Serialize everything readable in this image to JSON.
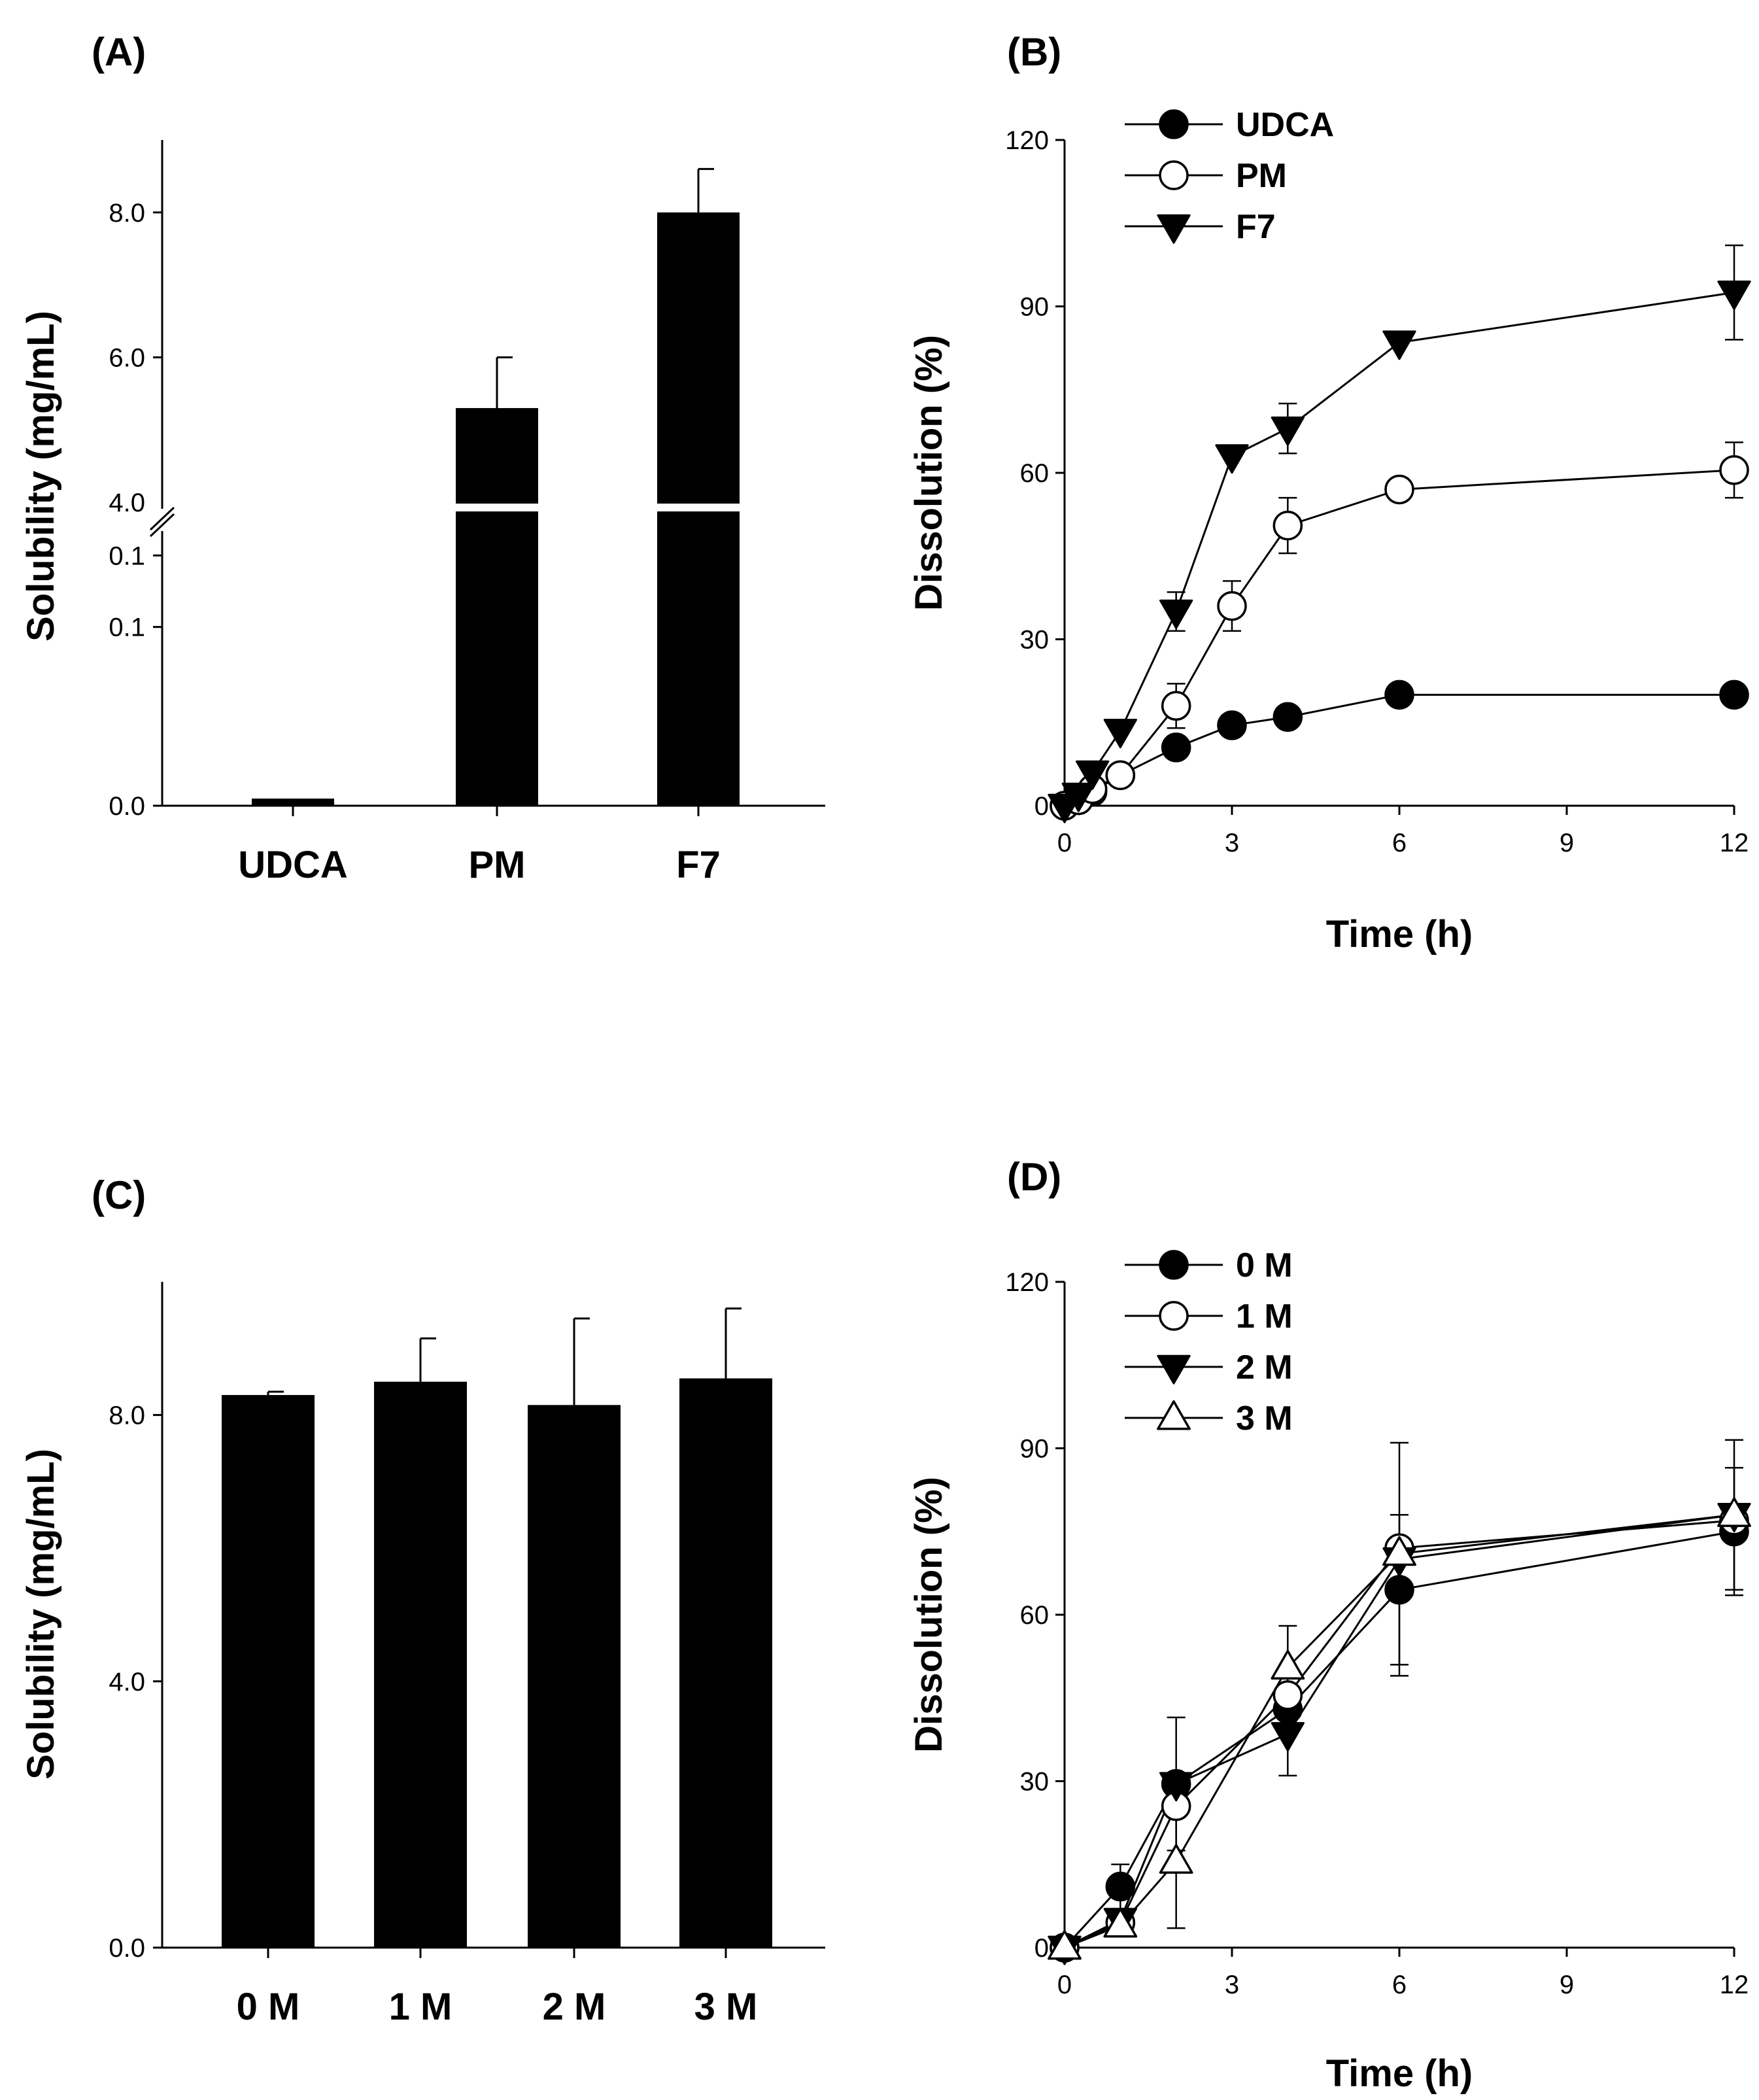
{
  "colors": {
    "ink": "#000000",
    "paper": "#ffffff"
  },
  "chart_data": [
    {
      "id": "A",
      "panel_label": "(A)",
      "type": "bar",
      "broken_axis": true,
      "ylabel": "Solubility (mg/mL)",
      "categories": [
        "UDCA",
        "PM",
        "F7"
      ],
      "values": [
        0.004,
        5.3,
        8.0
      ],
      "errors": [
        0.001,
        0.7,
        0.6
      ],
      "lower_segment": {
        "ylim": [
          0.0,
          0.15
        ],
        "ticks": [
          "0.0",
          "0.1",
          "0.1"
        ]
      },
      "upper_segment": {
        "ylim": [
          4.0,
          9.0
        ],
        "ticks": [
          "4.0",
          "6.0",
          "8.0"
        ]
      }
    },
    {
      "id": "B",
      "panel_label": "(B)",
      "type": "line",
      "xlabel": "Time (h)",
      "ylabel": "Dissolution (%)",
      "xlim": [
        0,
        12
      ],
      "ylim": [
        0,
        120
      ],
      "xticks": [
        "0",
        "3",
        "6",
        "9",
        "12"
      ],
      "yticks": [
        "0",
        "30",
        "60",
        "90",
        "120"
      ],
      "legend_position": "top-left",
      "series": [
        {
          "name": "UDCA",
          "marker": "filled-circle",
          "x": [
            0,
            0.25,
            0.5,
            1,
            2,
            3,
            4,
            6,
            12
          ],
          "y": [
            0,
            1,
            2.5,
            5.5,
            10.5,
            14.5,
            16,
            20,
            20
          ],
          "err": [
            0,
            0,
            0,
            0,
            0,
            0,
            0,
            0,
            0
          ]
        },
        {
          "name": "PM",
          "marker": "open-circle",
          "x": [
            0,
            0.25,
            0.5,
            1,
            2,
            3,
            4,
            6,
            12
          ],
          "y": [
            0,
            1,
            3,
            5.5,
            18,
            36,
            50.5,
            57,
            60.5
          ],
          "err": [
            0,
            0,
            0,
            0,
            4,
            4.5,
            5,
            0,
            5
          ]
        },
        {
          "name": "F7",
          "marker": "filled-triangle-down",
          "x": [
            0,
            0.25,
            0.5,
            1,
            2,
            3,
            4,
            6,
            12
          ],
          "y": [
            0,
            2,
            6,
            13.5,
            35,
            63,
            68,
            83.5,
            92.5
          ],
          "err": [
            0,
            0,
            0,
            0,
            3.5,
            0,
            4.5,
            0,
            8.5
          ]
        }
      ]
    },
    {
      "id": "C",
      "panel_label": "(C)",
      "type": "bar",
      "ylabel": "Solubility (mg/mL)",
      "categories": [
        "0 M",
        "1 M",
        "2 M",
        "3 M"
      ],
      "values": [
        8.3,
        8.5,
        8.15,
        8.55
      ],
      "errors": [
        0.05,
        0.65,
        1.3,
        1.05
      ],
      "ylim": [
        0,
        10
      ],
      "yticks": [
        "0.0",
        "4.0",
        "8.0"
      ]
    },
    {
      "id": "D",
      "panel_label": "(D)",
      "type": "line",
      "xlabel": "Time (h)",
      "ylabel": "Dissolution (%)",
      "xlim": [
        0,
        12
      ],
      "ylim": [
        0,
        120
      ],
      "xticks": [
        "0",
        "3",
        "6",
        "9",
        "12"
      ],
      "yticks": [
        "0",
        "30",
        "60",
        "90",
        "120"
      ],
      "legend_position": "top-left",
      "series": [
        {
          "name": "0 M",
          "marker": "filled-circle",
          "x": [
            0,
            1,
            2,
            4,
            6,
            12
          ],
          "y": [
            0,
            11,
            29.5,
            43,
            64.5,
            75
          ],
          "err": [
            0,
            4,
            12,
            0,
            13.5,
            11.5
          ]
        },
        {
          "name": "1 M",
          "marker": "open-circle",
          "x": [
            0,
            1,
            2,
            4,
            6,
            12
          ],
          "y": [
            0,
            4.5,
            25.5,
            45.5,
            72,
            77
          ],
          "err": [
            0,
            0,
            0,
            0,
            0,
            0
          ]
        },
        {
          "name": "2 M",
          "marker": "filled-triangle-down",
          "x": [
            0,
            1,
            2,
            4,
            6,
            12
          ],
          "y": [
            0,
            5,
            29.5,
            38.5,
            70,
            78
          ],
          "err": [
            0,
            0,
            0,
            7.5,
            21,
            0
          ]
        },
        {
          "name": "3 M",
          "marker": "open-triangle-up",
          "x": [
            0,
            1,
            2,
            4,
            6,
            12
          ],
          "y": [
            0,
            4,
            15.5,
            50.5,
            71,
            78
          ],
          "err": [
            0,
            0,
            12,
            7.5,
            0,
            13.5
          ]
        }
      ]
    }
  ]
}
